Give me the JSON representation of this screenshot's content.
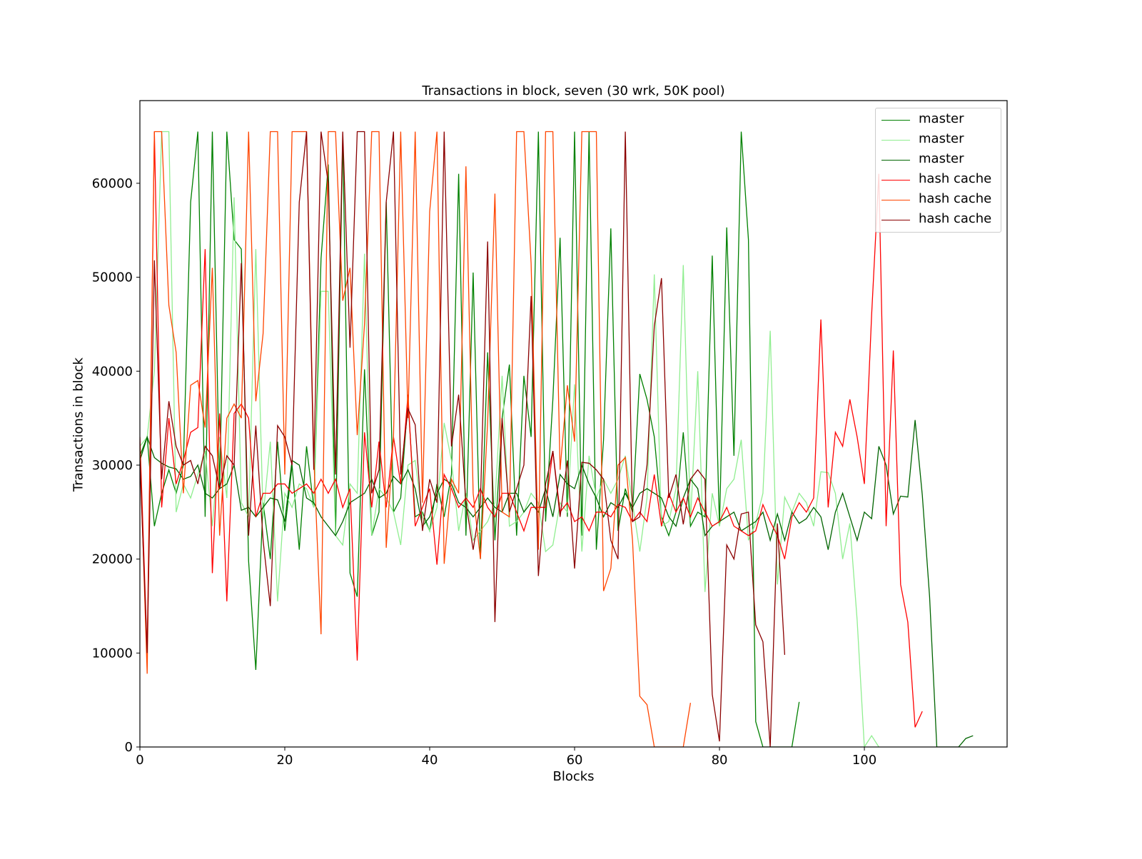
{
  "chart_data": {
    "type": "line",
    "title": "Transactions in block, seven (30 wrk, 50K pool)",
    "xlabel": "Blocks",
    "ylabel": "Transactions in block",
    "xlim": [
      0,
      119.7
    ],
    "ylim": [
      0,
      68800
    ],
    "xticks": [
      0,
      20,
      40,
      60,
      80,
      100
    ],
    "yticks": [
      0,
      10000,
      20000,
      30000,
      40000,
      50000,
      60000
    ],
    "grid": false,
    "legend_position": "upper right",
    "series": [
      {
        "name": "master",
        "color": "#008000",
        "values": [
          31000,
          33000,
          23500,
          27000,
          29500,
          27000,
          30000,
          58000,
          65500,
          24500,
          65500,
          27500,
          65500,
          54000,
          53000,
          19800,
          8200,
          26000,
          20000,
          32500,
          23000,
          30000,
          21000,
          32000,
          25500,
          52000,
          62000,
          22500,
          65000,
          18500,
          16000,
          40200,
          22500,
          25000,
          58000,
          25000,
          26500,
          37000,
          24500,
          25000,
          23000,
          28000,
          24500,
          29000,
          61000,
          22500,
          50500,
          20000,
          42000,
          22000,
          35000,
          40700,
          22500,
          39500,
          33000,
          65500,
          24000,
          37000,
          54200,
          24500,
          65500,
          22500,
          65500,
          21000,
          32700,
          55200,
          23000,
          27500,
          25000,
          39700,
          37000,
          33000,
          24500,
          22500,
          25000,
          33500,
          23500,
          25000,
          24500,
          52300,
          23500,
          55300,
          31000,
          65500,
          54000,
          2700,
          0,
          0,
          0,
          0,
          0,
          4800
        ]
      },
      {
        "name": "master",
        "color": "#90ee90",
        "values": [
          32000,
          33000,
          40000,
          65500,
          65500,
          25000,
          28000,
          26500,
          29000,
          31500,
          23500,
          33000,
          26500,
          58500,
          26000,
          24500,
          53000,
          24500,
          32500,
          15500,
          27000,
          25500,
          28000,
          27500,
          25500,
          48500,
          48500,
          22500,
          21500,
          28000,
          27000,
          52500,
          22500,
          27500,
          26500,
          25000,
          21500,
          30000,
          30500,
          24500,
          23000,
          25500,
          34500,
          30500,
          23000,
          27000,
          22000,
          23000,
          24000,
          26000,
          39500,
          23500,
          24000,
          25000,
          27000,
          26000,
          20800,
          21500,
          26000,
          25000,
          38600,
          20800,
          31000,
          26500,
          28500,
          27000,
          28500,
          31000,
          26000,
          20800,
          26500,
          50300,
          23500,
          24000,
          27500,
          51300,
          24000,
          40000,
          16500,
          27000,
          23500,
          27500,
          28500,
          32700,
          22000,
          23800,
          27000,
          44300,
          17300,
          26600,
          25000,
          27000,
          26000,
          23500,
          29300,
          29200,
          27000,
          20000,
          23800,
          13500,
          0,
          1200,
          0
        ]
      },
      {
        "name": "master",
        "color": "#006400",
        "values": [
          30500,
          33000,
          30800,
          30200,
          29800,
          29600,
          28500,
          28800,
          30000,
          27000,
          26500,
          27500,
          28000,
          30000,
          25200,
          25500,
          24500,
          25500,
          26500,
          26300,
          24000,
          30500,
          30000,
          26500,
          26000,
          24500,
          23500,
          22500,
          24000,
          26000,
          26500,
          27000,
          28500,
          26500,
          27000,
          28800,
          28000,
          29500,
          27500,
          23500,
          24500,
          27000,
          28500,
          28000,
          26000,
          25500,
          24500,
          25500,
          26500,
          25500,
          25000,
          27000,
          27000,
          25000,
          26000,
          25000,
          27500,
          24500,
          29000,
          28000,
          27500,
          30000,
          28000,
          26500,
          24500,
          26000,
          25500,
          27000,
          25500,
          27000,
          27500,
          27000,
          26500,
          24500,
          23500,
          26500,
          28500,
          27500,
          22500,
          23500,
          24000,
          24500,
          25000,
          23000,
          23500,
          24000,
          25000,
          22000,
          24800,
          22000,
          25000,
          23800,
          24300,
          25500,
          24500,
          21000,
          25000,
          27000,
          24500,
          22000,
          25000,
          24300,
          32000,
          30000,
          24800,
          26700,
          26600,
          34800,
          26800,
          16000,
          0,
          0,
          0,
          0,
          900,
          1200
        ]
      },
      {
        "name": "hash cache",
        "color": "#ff0000",
        "values": [
          33000,
          10000,
          65500,
          25500,
          35000,
          28000,
          30500,
          33500,
          34000,
          53000,
          18500,
          35500,
          15500,
          35500,
          36500,
          35000,
          24500,
          27000,
          27000,
          28000,
          28000,
          27000,
          27500,
          28000,
          27000,
          28500,
          27000,
          28500,
          25500,
          27500,
          9200,
          33500,
          25500,
          32500,
          25500,
          33000,
          28000,
          37500,
          23500,
          25500,
          27500,
          19400,
          29000,
          27500,
          25500,
          26500,
          25500,
          27500,
          25500,
          24500,
          27000,
          27000,
          25000,
          23000,
          25500,
          25500,
          25500,
          31500,
          25000,
          26000,
          24000,
          24500,
          23000,
          25000,
          25000,
          24500,
          25800,
          25500,
          24000,
          25000,
          24000,
          29000,
          23500,
          27000,
          25000,
          26500,
          24500,
          26500,
          25000,
          23500,
          24000,
          25500,
          23500,
          23000,
          22500,
          23000,
          25800,
          24000,
          22500,
          20000,
          24500,
          26000,
          25000,
          26500,
          45500,
          25500,
          33500,
          32000,
          37000,
          33000,
          28000,
          46000,
          61000,
          23500,
          42200,
          17300,
          13300,
          2100,
          3800
        ]
      },
      {
        "name": "hash cache",
        "color": "#ff4500",
        "values": [
          32000,
          7800,
          65500,
          65500,
          47000,
          42000,
          27000,
          38500,
          39000,
          34000,
          51000,
          22500,
          35000,
          36500,
          35000,
          65500,
          36800,
          44000,
          65500,
          65500,
          29000,
          65500,
          65500,
          65500,
          31000,
          12000,
          65500,
          65500,
          47500,
          51000,
          33200,
          45000,
          65500,
          65500,
          21200,
          33000,
          65500,
          35000,
          65500,
          26000,
          57000,
          65500,
          19500,
          28500,
          27000,
          61800,
          27000,
          20000,
          34500,
          58900,
          25000,
          24500,
          65500,
          65500,
          51500,
          21000,
          65500,
          65500,
          29500,
          38500,
          32500,
          65500,
          65500,
          65500,
          16600,
          19000,
          30000,
          30800,
          22000,
          5400,
          4500,
          0,
          0,
          0,
          0,
          0,
          4700
        ]
      },
      {
        "name": "hash cache",
        "color": "#8b0000",
        "values": [
          30500,
          10000,
          51800,
          28500,
          36800,
          32000,
          30000,
          30500,
          28000,
          32000,
          31000,
          27500,
          31000,
          30000,
          51500,
          22500,
          34200,
          22000,
          15000,
          34200,
          33000,
          30000,
          58000,
          65500,
          29500,
          65500,
          60000,
          29000,
          65500,
          42500,
          65500,
          65500,
          27000,
          29500,
          58000,
          65500,
          29000,
          36000,
          34300,
          23000,
          28500,
          26000,
          65500,
          32000,
          37500,
          26000,
          21000,
          26000,
          53800,
          13300,
          35000,
          25000,
          27500,
          30000,
          48000,
          18200,
          28000,
          31500,
          24500,
          30500,
          19000,
          30300,
          30200,
          29500,
          28500,
          22000,
          20000,
          65500,
          24000,
          24500,
          30000,
          44800,
          49900,
          26500,
          29000,
          23700,
          28500,
          29500,
          28500,
          5600,
          600,
          21500,
          20000,
          24800,
          25000,
          13000,
          11200,
          0,
          23800,
          9800
        ]
      }
    ]
  },
  "legend": {
    "items": [
      {
        "label": "master",
        "color": "#008000"
      },
      {
        "label": "master",
        "color": "#90ee90"
      },
      {
        "label": "master",
        "color": "#006400"
      },
      {
        "label": "hash cache",
        "color": "#ff0000"
      },
      {
        "label": "hash cache",
        "color": "#ff4500"
      },
      {
        "label": "hash cache",
        "color": "#8b0000"
      }
    ]
  }
}
